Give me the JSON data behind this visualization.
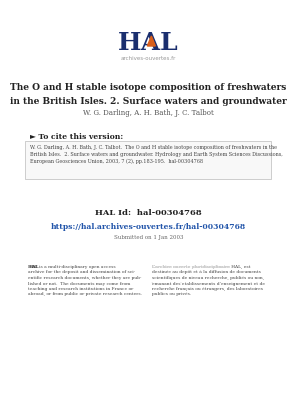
{
  "bg_color": "#ffffff",
  "title_line1": "The O and H stable isotope composition of freshwaters",
  "title_line2": "in the British Isles. 2. Surface waters and groundwater",
  "authors": "W. G. Darling, A. H. Bath, J. C. Talbot",
  "cite_header": "► To cite this version:",
  "cite_text": "W. G. Darling, A. H. Bath, J. C. Talbot.  The O and H stable isotope composition of freshwaters in the\nBritish Isles.  2. Surface waters and groundwater. Hydrology and Earth System Sciences Discussions,\nEuropean Geosciences Union, 2003, 7 (2), pp.183-195.  hal-00304768",
  "hal_id_label": "HAL Id:  hal-00304768",
  "hal_url": "https://hal.archives-ouvertes.fr/hal-00304768",
  "submitted": "Submitted on 1 Jan 2003",
  "hal_text_left": "HAL is a multi-disciplinary open access\narchive for the deposit and dissemination of sci-\nentific research documents, whether they are pub-\nlished or not.  The documents may come from\nteaching and research institutions in France or\nabroad, or from public or private research centers.",
  "hal_text_right": "L’archive ouverte pluridisciplinaire HAL, est\ndestinée au d́epôt et à la diffusion de documents\nscientifiques de niveau recherche, publiés ou non,\ńemanant des ́etablissements d’enseignement et de\nrecherche français ou étrangers, des laboratoires\npublics ou privés.",
  "hal_color": "#1a2e6e",
  "orange_color": "#d95f1a",
  "cite_box_color": "#f8f8f8",
  "cite_box_border": "#bbbbbb",
  "text_color": "#222222",
  "author_color": "#555555",
  "url_color": "#2255aa",
  "body_text_color": "#444444"
}
